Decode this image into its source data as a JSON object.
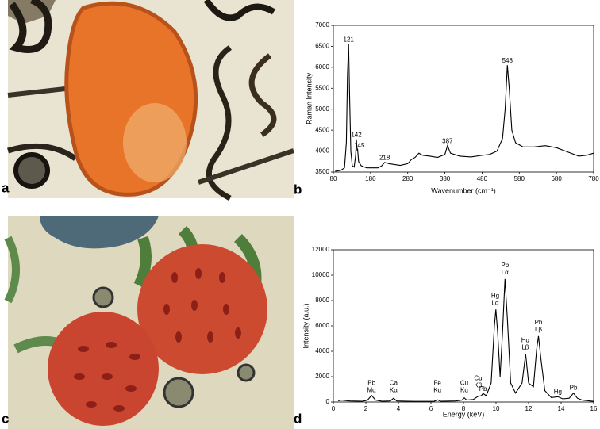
{
  "panel_labels": [
    "a",
    "b",
    "c",
    "d"
  ],
  "chart_data": [
    {
      "type": "line",
      "xlabel": "Wavenumber (cm⁻¹)",
      "ylabel": "Raman Intensity",
      "color": "#000000",
      "xlim": [
        80,
        780
      ],
      "xticks": [
        80,
        180,
        280,
        380,
        480,
        580,
        680,
        780
      ],
      "ylim": [
        3500,
        7000
      ],
      "yticks": [
        3500,
        4000,
        4500,
        5000,
        5500,
        6000,
        6500,
        7000
      ],
      "x": [
        85,
        100,
        110,
        115,
        118,
        121,
        124,
        127,
        131,
        136,
        140,
        142,
        144,
        145,
        148,
        155,
        170,
        200,
        210,
        218,
        230,
        260,
        280,
        290,
        300,
        310,
        320,
        340,
        360,
        380,
        387,
        395,
        420,
        450,
        480,
        500,
        520,
        535,
        542,
        548,
        553,
        560,
        570,
        590,
        620,
        650,
        680,
        710,
        740,
        760,
        780
      ],
      "values": [
        3520,
        3540,
        3600,
        4200,
        5800,
        6560,
        5200,
        4000,
        3650,
        3620,
        3900,
        4280,
        4000,
        4060,
        3750,
        3650,
        3600,
        3600,
        3650,
        3730,
        3700,
        3660,
        3700,
        3800,
        3850,
        3950,
        3900,
        3880,
        3850,
        3920,
        4130,
        3950,
        3880,
        3860,
        3900,
        3920,
        4000,
        4300,
        5000,
        6050,
        5500,
        4500,
        4200,
        4100,
        4100,
        4130,
        4080,
        3980,
        3880,
        3900,
        3950
      ],
      "annotations": [
        {
          "lines": [
            "121"
          ],
          "x": 121,
          "y": 6650
        },
        {
          "lines": [
            "142"
          ],
          "x": 142,
          "y": 4380
        },
        {
          "lines": [
            "145"
          ],
          "x": 150,
          "y": 4130
        },
        {
          "lines": [
            "218"
          ],
          "x": 218,
          "y": 3830
        },
        {
          "lines": [
            "387"
          ],
          "x": 387,
          "y": 4230
        },
        {
          "lines": [
            "548"
          ],
          "x": 548,
          "y": 6150
        }
      ]
    },
    {
      "type": "line",
      "xlabel": "Energy (keV)",
      "ylabel": "Intensity (a.u.)",
      "color": "#000000",
      "xlim": [
        0,
        16
      ],
      "xticks": [
        0,
        2,
        4,
        6,
        8,
        10,
        12,
        14,
        16
      ],
      "ylim": [
        0,
        12000
      ],
      "yticks": [
        0,
        2000,
        4000,
        6000,
        8000,
        10000,
        12000
      ],
      "x": [
        0.3,
        0.5,
        1,
        1.8,
        2.1,
        2.35,
        2.6,
        3,
        3.5,
        3.7,
        3.9,
        5,
        6.2,
        6.4,
        6.6,
        7.5,
        7.9,
        8.05,
        8.2,
        8.6,
        8.9,
        9.1,
        9.2,
        9.4,
        9.7,
        9.9,
        9.99,
        10.1,
        10.25,
        10.4,
        10.55,
        10.7,
        10.9,
        11.2,
        11.6,
        11.82,
        12.0,
        12.3,
        12.5,
        12.61,
        12.75,
        13,
        13.4,
        13.8,
        14.1,
        14.5,
        14.76,
        15,
        15.3,
        16
      ],
      "values": [
        100,
        150,
        80,
        60,
        150,
        520,
        150,
        60,
        80,
        300,
        80,
        50,
        60,
        170,
        60,
        80,
        150,
        330,
        150,
        200,
        450,
        500,
        680,
        500,
        1500,
        6000,
        7300,
        5500,
        2000,
        5500,
        9700,
        6500,
        1500,
        700,
        1500,
        3800,
        1500,
        1200,
        4200,
        5200,
        3500,
        900,
        350,
        420,
        250,
        300,
        700,
        300,
        150,
        50
      ],
      "annotations": [
        {
          "lines": [
            "Pb",
            "Mα"
          ],
          "x": 2.35,
          "y": 900
        },
        {
          "lines": [
            "Ca",
            "Kα"
          ],
          "x": 3.7,
          "y": 900
        },
        {
          "lines": [
            "Fe",
            "Kα"
          ],
          "x": 6.4,
          "y": 900
        },
        {
          "lines": [
            "Cu",
            "Kα"
          ],
          "x": 8.05,
          "y": 900
        },
        {
          "lines": [
            "Cu",
            "Kβ"
          ],
          "x": 8.9,
          "y": 1300
        },
        {
          "lines": [
            "Pb"
          ],
          "x": 9.2,
          "y": 1000
        },
        {
          "lines": [
            "Hg",
            "Lα"
          ],
          "x": 9.95,
          "y": 7800
        },
        {
          "lines": [
            "Pb",
            "Lα"
          ],
          "x": 10.55,
          "y": 10200
        },
        {
          "lines": [
            "Hg",
            "Lβ"
          ],
          "x": 11.8,
          "y": 4300
        },
        {
          "lines": [
            "Pb",
            "Lβ"
          ],
          "x": 12.61,
          "y": 5700
        },
        {
          "lines": [
            "Hg"
          ],
          "x": 13.8,
          "y": 800
        },
        {
          "lines": [
            "Pb"
          ],
          "x": 14.76,
          "y": 1100
        }
      ]
    }
  ]
}
